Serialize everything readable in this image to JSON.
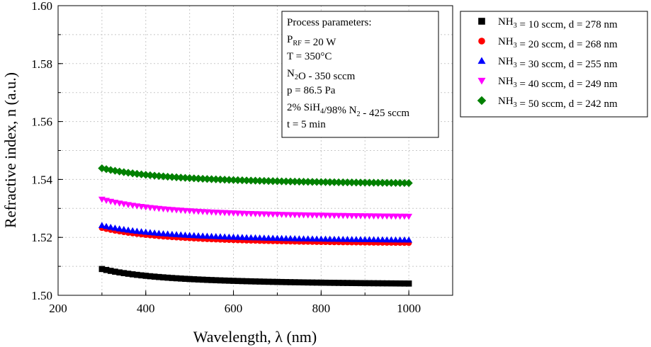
{
  "chart_data": {
    "type": "scatter",
    "xlabel": "Wavelength, λ (nm)",
    "ylabel": "Refractive index, n (a.u.)",
    "xlim": [
      200,
      1100
    ],
    "ylim": [
      1.5,
      1.6
    ],
    "xticks": [
      200,
      400,
      600,
      800,
      1000
    ],
    "xtick_labels": [
      "200",
      "400",
      "600",
      "800",
      "1000"
    ],
    "yticks": [
      1.5,
      1.52,
      1.54,
      1.56,
      1.58,
      1.6
    ],
    "ytick_labels": [
      "1.50",
      "1.52",
      "1.54",
      "1.56",
      "1.58",
      "1.60"
    ],
    "grid": true,
    "x_start": 300,
    "x_end": 1000,
    "x_step": 10,
    "annotation": {
      "title": "Process parameters:",
      "lines": [
        {
          "parts": [
            {
              "t": "P"
            },
            {
              "t": "RF",
              "sub": true
            },
            {
              "t": " = 20 W"
            }
          ]
        },
        {
          "parts": [
            {
              "t": "T = 350°C"
            }
          ]
        },
        {
          "parts": [
            {
              "t": "N"
            },
            {
              "t": "2",
              "sub": true
            },
            {
              "t": "O - 350 sccm"
            }
          ]
        },
        {
          "parts": [
            {
              "t": "p = 86.5 Pa"
            }
          ]
        },
        {
          "parts": [
            {
              "t": "2% SiH"
            },
            {
              "t": "4",
              "sub": true
            },
            {
              "t": "/98% N"
            },
            {
              "t": "2",
              "sub": true
            },
            {
              "t": " - 425 sccm"
            }
          ]
        },
        {
          "parts": [
            {
              "t": "t = 5 min"
            }
          ]
        }
      ]
    },
    "series": [
      {
        "name": "NH3 = 10 sccm, d = 278 nm",
        "legend_parts": [
          {
            "t": "NH"
          },
          {
            "t": "3",
            "sub": true
          },
          {
            "t": " = 10 sccm, d = 278 nm"
          }
        ],
        "marker": "square",
        "color": "#000000",
        "n_inf": 1.5035,
        "A": 4.5,
        "p": 1.9
      },
      {
        "name": "NH3 = 20 sccm, d = 268 nm",
        "legend_parts": [
          {
            "t": "NH"
          },
          {
            "t": "3",
            "sub": true
          },
          {
            "t": " = 20 sccm, d = 268 nm"
          }
        ],
        "marker": "circle",
        "color": "#ff0000",
        "n_inf": 1.5175,
        "A": 4.5,
        "p": 1.87
      },
      {
        "name": "NH3 = 30 sccm, d = 255 nm",
        "legend_parts": [
          {
            "t": "NH"
          },
          {
            "t": "3",
            "sub": true
          },
          {
            "t": " = 30 sccm, d = 255 nm"
          }
        ],
        "marker": "triangle-up",
        "color": "#0000ff",
        "n_inf": 1.5185,
        "A": 4.2,
        "p": 1.83
      },
      {
        "name": "NH3 = 40 sccm, d = 249 nm",
        "legend_parts": [
          {
            "t": "NH"
          },
          {
            "t": "3",
            "sub": true
          },
          {
            "t": " = 40 sccm, d = 249 nm"
          }
        ],
        "marker": "triangle-down",
        "color": "#ff00ff",
        "n_inf": 1.5265,
        "A": 4.8,
        "p": 1.8
      },
      {
        "name": "NH3 = 50 sccm, d = 242 nm",
        "legend_parts": [
          {
            "t": "NH"
          },
          {
            "t": "3",
            "sub": true
          },
          {
            "t": " = 50 sccm, d = 242 nm"
          }
        ],
        "marker": "diamond",
        "color": "#008000",
        "n_inf": 1.538,
        "A": 3.8,
        "p": 1.7
      }
    ]
  }
}
